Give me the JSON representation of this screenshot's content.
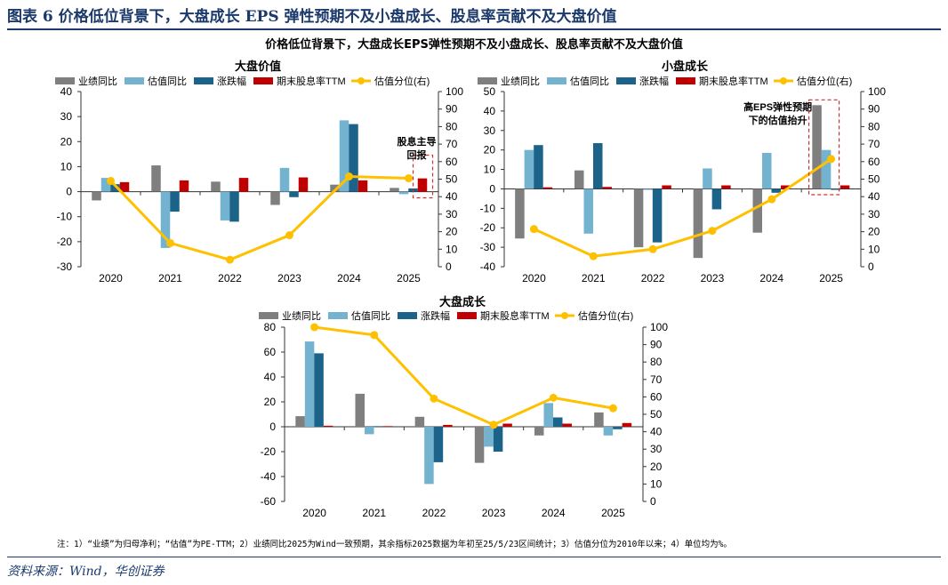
{
  "header": {
    "title": "图表 6   价格低位背景下，大盘成长 EPS 弹性预期不及小盘成长、股息率贡献不及大盘价值"
  },
  "subtitle": "价格低位背景下，大盘成长EPS弹性预期不及小盘成长、股息率贡献不及大盘价值",
  "footnote": "注：1）“业绩”为归母净利；“估值”为PE-TTM；2）业绩同比2025为Wind一致预期，其余指标2025数据为年初至25/5/23区间统计；3）估值分位为2010年以来；4）单位均为%。",
  "source": "资料来源：Wind，华创证券",
  "colors": {
    "业绩同比": "#7f7f7f",
    "估值同比": "#74b3cf",
    "涨跌幅": "#1b6389",
    "期末股息率TTM": "#c00000",
    "估值分位(右)": "#ffc000",
    "annotation": "#d0302f",
    "title": "#1b3a6b"
  },
  "chart_data": [
    {
      "type": "bar",
      "title": "大盘价值",
      "categories": [
        "2020",
        "2021",
        "2022",
        "2023",
        "2024",
        "2025"
      ],
      "ylim": [
        -30,
        40
      ],
      "yticks": [
        -30,
        -20,
        -10,
        0,
        10,
        20,
        30,
        40
      ],
      "y2lim": [
        0,
        100
      ],
      "y2ticks": [
        0,
        10,
        20,
        30,
        40,
        50,
        60,
        70,
        80,
        90,
        100
      ],
      "series": [
        {
          "name": "业绩同比",
          "values": [
            -3.5,
            10.5,
            4,
            -5.3,
            2.8,
            1.5
          ]
        },
        {
          "name": "估值同比",
          "values": [
            5.5,
            -22.5,
            -11.5,
            9.5,
            28.5,
            -1
          ]
        },
        {
          "name": "涨跌幅",
          "values": [
            3,
            -8,
            -12,
            -2.2,
            27,
            1.3
          ]
        },
        {
          "name": "期末股息率TTM",
          "values": [
            3.8,
            4.5,
            5.5,
            5.7,
            4.5,
            5.3
          ]
        },
        {
          "name": "估值分位(右)",
          "type": "line",
          "axis": "right",
          "values": [
            49,
            13.5,
            4,
            18,
            51.5,
            50.5
          ]
        }
      ],
      "annotation": {
        "lines": [
          "股息主导",
          "回报"
        ],
        "category": "2025"
      }
    },
    {
      "type": "bar",
      "title": "小盘成长",
      "categories": [
        "2020",
        "2021",
        "2022",
        "2023",
        "2024",
        "2025"
      ],
      "ylim": [
        -40,
        50
      ],
      "yticks": [
        -40,
        -30,
        -20,
        -10,
        0,
        10,
        20,
        30,
        40,
        50
      ],
      "y2lim": [
        0,
        100
      ],
      "y2ticks": [
        0,
        10,
        20,
        30,
        40,
        50,
        60,
        70,
        80,
        90,
        100
      ],
      "series": [
        {
          "name": "业绩同比",
          "values": [
            -25.5,
            9.5,
            -30,
            -35.5,
            -22.5,
            43
          ]
        },
        {
          "name": "估值同比",
          "values": [
            20,
            -23,
            -0.5,
            10.5,
            18.5,
            20
          ]
        },
        {
          "name": "涨跌幅",
          "values": [
            22.5,
            23.5,
            -27.5,
            -10.5,
            -2,
            -0.5
          ]
        },
        {
          "name": "期末股息率TTM",
          "values": [
            0.8,
            1,
            1.8,
            1.8,
            1.8,
            1.8
          ]
        },
        {
          "name": "估值分位(右)",
          "type": "line",
          "axis": "right",
          "values": [
            21.5,
            6,
            10,
            20.5,
            38.5,
            61.5
          ]
        }
      ],
      "annotation": {
        "lines": [
          "高EPS弹性预期",
          "下的估值抬升"
        ],
        "category": "2025"
      }
    },
    {
      "type": "bar",
      "title": "大盘成长",
      "categories": [
        "2020",
        "2021",
        "2022",
        "2023",
        "2024",
        "2025"
      ],
      "ylim": [
        -60,
        80
      ],
      "yticks": [
        -60,
        -40,
        -20,
        0,
        20,
        40,
        60,
        80
      ],
      "y2lim": [
        0,
        100
      ],
      "y2ticks": [
        0,
        10,
        20,
        30,
        40,
        50,
        60,
        70,
        80,
        90,
        100
      ],
      "series": [
        {
          "name": "业绩同比",
          "values": [
            8.5,
            26.5,
            8,
            -29,
            -7,
            11.5
          ]
        },
        {
          "name": "估值同比",
          "values": [
            68.5,
            -6,
            -46,
            -16,
            19,
            -7
          ]
        },
        {
          "name": "涨跌幅",
          "values": [
            59,
            0.5,
            -28.5,
            -20,
            7.5,
            -2
          ]
        },
        {
          "name": "期末股息率TTM",
          "values": [
            0.8,
            0.5,
            1.5,
            2.5,
            2.5,
            3
          ]
        },
        {
          "name": "估值分位(右)",
          "type": "line",
          "axis": "right",
          "values": [
            100,
            95.5,
            59,
            44,
            59.5,
            53.5
          ]
        }
      ]
    }
  ]
}
